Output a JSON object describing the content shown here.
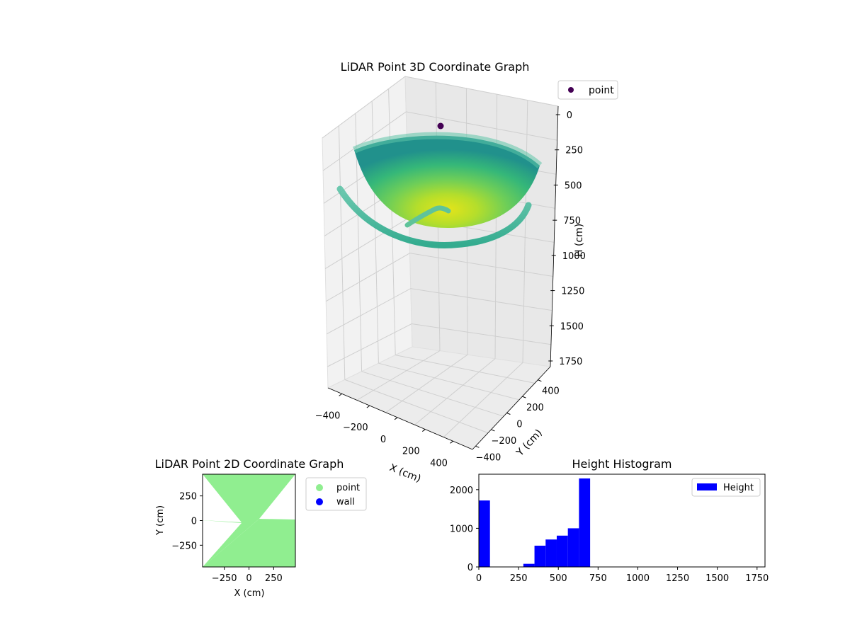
{
  "chart_data": [
    {
      "id": "plot3d",
      "type": "scatter",
      "title": "LiDAR Point 3D Coordinate Graph",
      "xlabel": "X (cm)",
      "ylabel": "Y (cm)",
      "zlabel": "H (cm)",
      "x_ticks": [
        "−400",
        "−200",
        "0",
        "200",
        "400"
      ],
      "y_ticks": [
        "−400",
        "−200",
        "0",
        "200",
        "400"
      ],
      "z_ticks": [
        "0",
        "250",
        "500",
        "750",
        "1000",
        "1250",
        "1500",
        "1750"
      ],
      "z_range": [
        0,
        1800
      ],
      "z_inverted": true,
      "colormap": "viridis",
      "grid": true,
      "legend_position": "top-right",
      "series": [
        {
          "name": "point",
          "color": "#440154",
          "description": "single isolated point near H=0"
        }
      ]
    },
    {
      "id": "plot2d",
      "type": "scatter",
      "title": "LiDAR Point 2D Coordinate Graph",
      "xlabel": "X (cm)",
      "ylabel": "Y (cm)",
      "x_ticks": [
        "−250",
        "0",
        "250"
      ],
      "y_ticks": [
        "250",
        "0",
        "−250"
      ],
      "xlim": [
        -470,
        470
      ],
      "ylim": [
        -470,
        470
      ],
      "legend_position": "outside-right",
      "series": [
        {
          "name": "point",
          "color": "#90ee90"
        },
        {
          "name": "wall",
          "color": "#0000ff"
        }
      ]
    },
    {
      "id": "hist",
      "type": "bar",
      "title": "Height Histogram",
      "xlim": [
        0,
        1800
      ],
      "ylim": [
        0,
        2400
      ],
      "x_ticks": [
        "0",
        "250",
        "500",
        "750",
        "1000",
        "1250",
        "1500",
        "1750"
      ],
      "y_ticks": [
        "0",
        "1000",
        "2000"
      ],
      "legend_position": "top-right",
      "series": [
        {
          "name": "Height",
          "color": "#0000ff",
          "bins": [
            {
              "x0": 0,
              "x1": 70,
              "count": 1720
            },
            {
              "x0": 280,
              "x1": 350,
              "count": 80
            },
            {
              "x0": 350,
              "x1": 420,
              "count": 550
            },
            {
              "x0": 420,
              "x1": 490,
              "count": 710
            },
            {
              "x0": 490,
              "x1": 560,
              "count": 810
            },
            {
              "x0": 560,
              "x1": 630,
              "count": 1000
            },
            {
              "x0": 630,
              "x1": 700,
              "count": 2290
            }
          ]
        }
      ]
    }
  ]
}
